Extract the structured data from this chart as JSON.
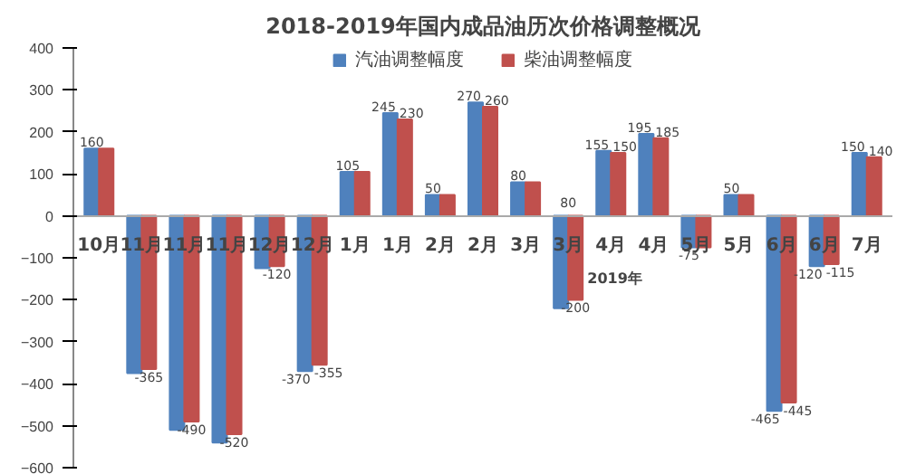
{
  "chart_data": {
    "type": "bar",
    "title": "2018-2019年国内成品油历次价格调整概况",
    "categories": [
      "10月",
      "11月",
      "11月",
      "11月",
      "12月",
      "12月",
      "1月",
      "1月",
      "2月",
      "2月",
      "3月",
      "3月",
      "4月",
      "4月",
      "5月",
      "5月",
      "6月",
      "6月",
      "7月"
    ],
    "series": [
      {
        "name": "汽油调整幅度",
        "color": "#4f81bd",
        "values": [
          160,
          -375,
          -510,
          -540,
          -125,
          -370,
          105,
          245,
          50,
          270,
          80,
          -220,
          155,
          195,
          -75,
          50,
          -465,
          -120,
          150
        ],
        "value_labels": [
          "160",
          null,
          null,
          null,
          null,
          "-370",
          "105",
          "245",
          "50",
          "270",
          "80",
          null,
          "155",
          "195",
          "-75",
          "50",
          "-465",
          "-120",
          "150"
        ]
      },
      {
        "name": "柴油调整幅度",
        "color": "#c0504d",
        "values": [
          160,
          -365,
          -490,
          -520,
          -120,
          -355,
          105,
          230,
          50,
          260,
          80,
          -200,
          150,
          185,
          -75,
          50,
          -445,
          -115,
          140
        ],
        "value_labels": [
          null,
          "-365",
          "-490",
          "-520",
          "-120",
          "-355",
          null,
          "230",
          null,
          "260",
          null,
          "-200",
          "150",
          "185",
          null,
          null,
          "-445",
          "-115",
          "140"
        ]
      }
    ],
    "ylim": [
      -600,
      400
    ],
    "yticks": [
      -600,
      -500,
      -400,
      -300,
      -200,
      -100,
      0,
      100,
      200,
      300,
      400
    ],
    "annotations": [
      "2019年",
      "80"
    ],
    "grid": false,
    "legend": "top"
  }
}
